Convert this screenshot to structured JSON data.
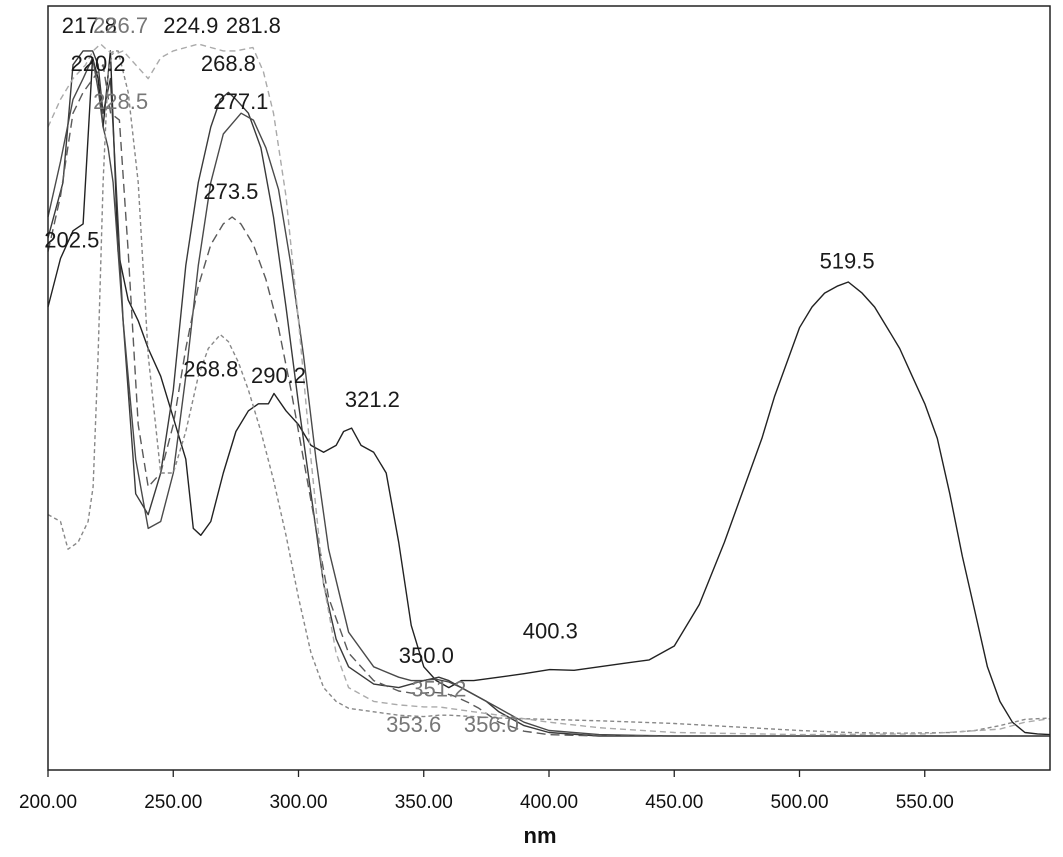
{
  "chart_data": {
    "type": "line",
    "title": "",
    "xlabel": "nm",
    "ylabel": "",
    "xlim": [
      200,
      600
    ],
    "ylim": [
      0,
      1.0
    ],
    "grid": false,
    "legend": "none",
    "x_ticks": [
      "200.00",
      "250.00",
      "300.00",
      "350.00",
      "400.00",
      "450.00",
      "500.00",
      "550.00"
    ],
    "x_tick_values": [
      200,
      250,
      300,
      350,
      400,
      450,
      500,
      550
    ],
    "series": [
      {
        "color": "#222222",
        "dash": "",
        "x": [
          200,
          205,
          210,
          214,
          217.8,
          220,
          222,
          224.9,
          228,
          232,
          236,
          240,
          245,
          250,
          255,
          258,
          261,
          265,
          270,
          275,
          280,
          284,
          288,
          290.2,
          295,
          300,
          305,
          310,
          315,
          318,
          321.2,
          325,
          330,
          335,
          340,
          345,
          350,
          355,
          360,
          365,
          370,
          380,
          390,
          400.3,
          410,
          420,
          430,
          440,
          450,
          460,
          470,
          480,
          485,
          490,
          500,
          505,
          510,
          515,
          519.5,
          525,
          530,
          535,
          540,
          545,
          550,
          555,
          560,
          565,
          570,
          575,
          580,
          585,
          590,
          595,
          600
        ],
        "y": [
          0.62,
          0.69,
          0.73,
          0.74,
          0.98,
          0.95,
          0.88,
          0.99,
          0.7,
          0.63,
          0.6,
          0.56,
          0.52,
          0.46,
          0.4,
          0.3,
          0.29,
          0.31,
          0.38,
          0.44,
          0.47,
          0.48,
          0.48,
          0.495,
          0.47,
          0.45,
          0.42,
          0.41,
          0.42,
          0.44,
          0.445,
          0.42,
          0.41,
          0.38,
          0.28,
          0.16,
          0.1,
          0.08,
          0.07,
          0.08,
          0.08,
          0.085,
          0.09,
          0.096,
          0.095,
          0.1,
          0.105,
          0.11,
          0.13,
          0.19,
          0.28,
          0.38,
          0.43,
          0.49,
          0.59,
          0.62,
          0.64,
          0.65,
          0.656,
          0.64,
          0.62,
          0.59,
          0.56,
          0.52,
          0.48,
          0.43,
          0.35,
          0.26,
          0.18,
          0.1,
          0.05,
          0.02,
          0.005,
          0.003,
          0.002
        ]
      },
      {
        "color": "#3a3a3a",
        "dash": "",
        "x": [
          200,
          206,
          210,
          214,
          217.8,
          220,
          222,
          224.9,
          226,
          230,
          235,
          240,
          245,
          250,
          255,
          260,
          265,
          268.8,
          272,
          275,
          280,
          285,
          290,
          295,
          300,
          305,
          310,
          315,
          320,
          330,
          340,
          350,
          356,
          360,
          365,
          370,
          375,
          380,
          390,
          400,
          420,
          450,
          500,
          550,
          600
        ],
        "y": [
          0.72,
          0.8,
          0.97,
          0.99,
          0.99,
          0.97,
          0.9,
          0.95,
          0.88,
          0.6,
          0.35,
          0.32,
          0.38,
          0.5,
          0.68,
          0.8,
          0.88,
          0.92,
          0.93,
          0.92,
          0.9,
          0.85,
          0.75,
          0.62,
          0.48,
          0.35,
          0.22,
          0.14,
          0.1,
          0.075,
          0.07,
          0.08,
          0.085,
          0.08,
          0.07,
          0.06,
          0.05,
          0.035,
          0.015,
          0.005,
          0.0,
          0.0,
          0.0,
          0.0,
          0.0
        ]
      },
      {
        "color": "#4a4a4a",
        "dash": "",
        "x": [
          200,
          205,
          210,
          214,
          217.8,
          220.2,
          222,
          224,
          226,
          230,
          235,
          240,
          245,
          250,
          255,
          260,
          265,
          270,
          277.1,
          282,
          287,
          292,
          297,
          302,
          307,
          312,
          320,
          330,
          340,
          345,
          350,
          351.2,
          355,
          360,
          365,
          370,
          375,
          380,
          390,
          400,
          420,
          450,
          500,
          550,
          600
        ],
        "y": [
          0.75,
          0.83,
          0.92,
          0.95,
          0.98,
          0.93,
          0.88,
          0.85,
          0.8,
          0.6,
          0.4,
          0.3,
          0.31,
          0.38,
          0.52,
          0.68,
          0.8,
          0.87,
          0.9,
          0.89,
          0.85,
          0.79,
          0.68,
          0.55,
          0.4,
          0.27,
          0.15,
          0.1,
          0.085,
          0.08,
          0.08,
          0.081,
          0.082,
          0.078,
          0.07,
          0.06,
          0.05,
          0.04,
          0.02,
          0.008,
          0.002,
          0.0,
          0.0,
          0.0,
          0.0
        ]
      },
      {
        "color": "#5a5a5a",
        "dash": "9,5",
        "x": [
          200,
          205,
          210,
          214,
          218,
          222,
          225,
          228.5,
          232,
          236,
          240,
          245,
          250,
          255,
          260,
          265,
          270,
          273.5,
          277,
          282,
          287,
          292,
          297,
          302,
          307,
          312,
          320,
          330,
          340,
          345,
          350,
          353.6,
          358,
          362,
          368,
          372,
          380,
          390,
          400,
          420,
          450,
          500,
          550,
          600
        ],
        "y": [
          0.7,
          0.78,
          0.9,
          0.93,
          0.95,
          0.97,
          0.9,
          0.89,
          0.7,
          0.45,
          0.36,
          0.38,
          0.45,
          0.56,
          0.65,
          0.71,
          0.74,
          0.75,
          0.74,
          0.71,
          0.66,
          0.59,
          0.5,
          0.4,
          0.3,
          0.2,
          0.12,
          0.08,
          0.065,
          0.062,
          0.062,
          0.063,
          0.062,
          0.058,
          0.048,
          0.04,
          0.02,
          0.007,
          0.002,
          0.0,
          0.0,
          0.0,
          0.0,
          0.0
        ]
      },
      {
        "color": "#888888",
        "dash": "4,3",
        "x": [
          200,
          205,
          208,
          212,
          216,
          218,
          220,
          222,
          224,
          226,
          228,
          232,
          236,
          240,
          245,
          250,
          255,
          260,
          264,
          268.8,
          272,
          276,
          280,
          285,
          290,
          295,
          300,
          305,
          310,
          315,
          320,
          330,
          340,
          350,
          356,
          360,
          370,
          380,
          390,
          400,
          420,
          450,
          480,
          500,
          520,
          540,
          560,
          570,
          580,
          590,
          600
        ],
        "y": [
          0.32,
          0.31,
          0.27,
          0.28,
          0.31,
          0.36,
          0.55,
          0.8,
          0.96,
          0.99,
          0.99,
          0.93,
          0.8,
          0.55,
          0.38,
          0.38,
          0.44,
          0.52,
          0.56,
          0.58,
          0.57,
          0.54,
          0.5,
          0.44,
          0.37,
          0.29,
          0.2,
          0.12,
          0.07,
          0.05,
          0.04,
          0.035,
          0.03,
          0.028,
          0.03,
          0.03,
          0.028,
          0.026,
          0.025,
          0.024,
          0.022,
          0.018,
          0.012,
          0.008,
          0.005,
          0.004,
          0.005,
          0.008,
          0.015,
          0.024,
          0.026
        ]
      },
      {
        "color": "#aaaaaa",
        "dash": "6,4",
        "x": [
          200,
          205,
          210,
          215,
          218,
          221,
          224,
          226.7,
          230,
          235,
          240,
          245,
          250,
          255,
          260,
          265,
          270,
          275,
          281.8,
          286,
          290,
          295,
          300,
          305,
          310,
          315,
          320,
          330,
          340,
          350,
          356.0,
          360,
          370,
          380,
          400,
          420,
          450,
          500,
          550,
          580,
          590,
          600
        ],
        "y": [
          0.88,
          0.92,
          0.95,
          0.97,
          0.99,
          1.0,
          0.99,
          0.985,
          0.99,
          0.97,
          0.95,
          0.98,
          0.99,
          0.995,
          1.0,
          0.995,
          0.99,
          0.99,
          0.995,
          0.96,
          0.9,
          0.78,
          0.6,
          0.4,
          0.22,
          0.12,
          0.07,
          0.05,
          0.045,
          0.042,
          0.042,
          0.04,
          0.035,
          0.03,
          0.02,
          0.012,
          0.005,
          0.002,
          0.003,
          0.01,
          0.02,
          0.025
        ]
      }
    ],
    "peak_labels": [
      {
        "text": "217.8",
        "x": 216.5,
        "y": 1.01,
        "light": false
      },
      {
        "text": "226.7",
        "x": 229,
        "y": 1.01,
        "light": true
      },
      {
        "text": "224.9",
        "x": 257,
        "y": 1.01,
        "light": false
      },
      {
        "text": "281.8",
        "x": 282,
        "y": 1.01,
        "light": false
      },
      {
        "text": "220.2",
        "x": 220,
        "y": 0.955,
        "light": false
      },
      {
        "text": "268.8",
        "x": 272,
        "y": 0.955,
        "light": false
      },
      {
        "text": "228.5",
        "x": 229,
        "y": 0.9,
        "light": true
      },
      {
        "text": "277.1",
        "x": 277,
        "y": 0.9,
        "light": false
      },
      {
        "text": "273.5",
        "x": 273,
        "y": 0.77,
        "light": false
      },
      {
        "text": "202.5",
        "x": 209.5,
        "y": 0.7,
        "light": false
      },
      {
        "text": "519.5",
        "x": 519,
        "y": 0.67,
        "light": false
      },
      {
        "text": "268.8",
        "x": 265,
        "y": 0.514,
        "light": false
      },
      {
        "text": "290.2",
        "x": 292,
        "y": 0.504,
        "light": false
      },
      {
        "text": "321.2",
        "x": 329.5,
        "y": 0.47,
        "light": false
      },
      {
        "text": "400.3",
        "x": 400.5,
        "y": 0.135,
        "light": false
      },
      {
        "text": "350.0",
        "x": 351,
        "y": 0.1,
        "light": false
      },
      {
        "text": "351.2",
        "x": 356,
        "y": 0.051,
        "light": true
      },
      {
        "text": "353.6",
        "x": 346,
        "y": 0.0,
        "light": true
      },
      {
        "text": "356.0",
        "x": 377,
        "y": 0.0,
        "light": true
      }
    ]
  }
}
